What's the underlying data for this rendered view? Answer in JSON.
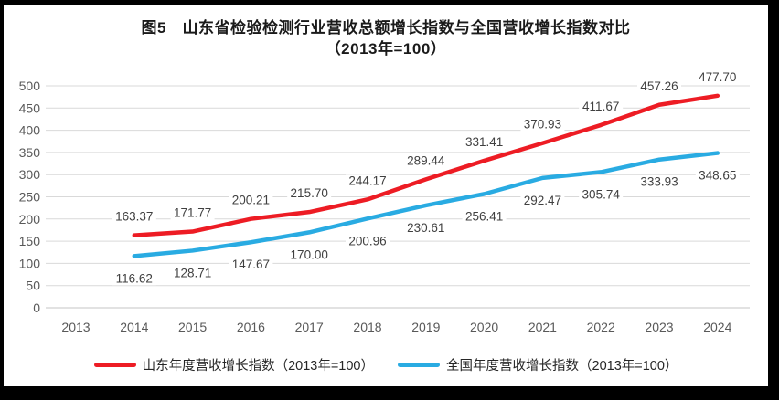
{
  "title": {
    "line1": "图5　山东省检验检测行业营收总额增长指数与全国营收增长指数对比",
    "line2": "（2013年=100）"
  },
  "colors": {
    "gridline": "#d9d9d9",
    "baseline": "#c6c6c6",
    "axis_text": "#595959",
    "data_label_text": "#404040",
    "shandong_red": "#ed1c24",
    "national_blue": "#29abe2",
    "frame_border": "#000000"
  },
  "chart_data": {
    "type": "line",
    "title": "图5　山东省检验检测行业营收总额增长指数与全国营收增长指数对比（2013年=100）",
    "categories": [
      "2013",
      "2014",
      "2015",
      "2016",
      "2017",
      "2018",
      "2019",
      "2020",
      "2021",
      "2022",
      "2023",
      "2024"
    ],
    "series": [
      {
        "name": "山东年度营收增长指数（2013年=100）",
        "color": "#ed1c24",
        "values": [
          null,
          163.37,
          171.77,
          200.21,
          215.7,
          244.17,
          289.44,
          331.41,
          370.93,
          411.67,
          457.26,
          477.7
        ]
      },
      {
        "name": "全国年度营收增长指数（2013年=100）",
        "color": "#29abe2",
        "values": [
          null,
          116.62,
          128.71,
          147.67,
          170.0,
          200.96,
          230.61,
          256.41,
          292.47,
          305.74,
          333.93,
          348.65
        ]
      }
    ],
    "xlabel": "",
    "ylabel": "",
    "ylim": [
      0,
      500
    ],
    "ytick_step": 50,
    "grid": "horizontal",
    "data_labels": true,
    "legend_position": "bottom"
  }
}
